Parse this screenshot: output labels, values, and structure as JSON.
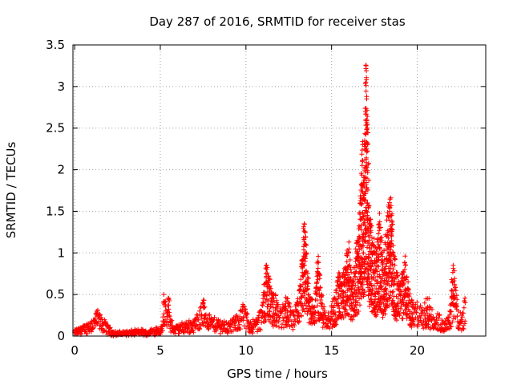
{
  "chart_data": {
    "type": "scatter",
    "title": "Day 287 of 2016, SRMTID for receiver stas",
    "xlabel": "GPS time / hours",
    "ylabel": "SRMTID / TECUs",
    "xlim": [
      -0.1,
      24
    ],
    "ylim": [
      0,
      3.5
    ],
    "x_ticks": [
      0,
      5,
      10,
      15,
      20
    ],
    "x_tick_labels": [
      "0",
      "5",
      "10",
      "15",
      "20"
    ],
    "y_ticks": [
      0,
      0.5,
      1,
      1.5,
      2,
      2.5,
      3,
      3.5
    ],
    "y_tick_labels": [
      "0",
      "0.5",
      "1",
      "1.5",
      "2",
      "2.5",
      "3",
      "3.5"
    ],
    "grid": true,
    "marker": "+",
    "color": "#ff0000",
    "series": [
      {
        "name": "SRMTID",
        "x": [
          0.0,
          0.2,
          0.4,
          0.6,
          0.8,
          1.0,
          1.2,
          1.3,
          1.4,
          1.6,
          1.8,
          2.0,
          2.2,
          2.5,
          3.0,
          3.5,
          4.0,
          4.2,
          4.5,
          4.8,
          5.0,
          5.1,
          5.2,
          5.3,
          5.4,
          5.5,
          5.6,
          5.8,
          6.0,
          6.5,
          7.0,
          7.3,
          7.5,
          7.6,
          7.8,
          8.0,
          8.5,
          9.0,
          9.5,
          9.8,
          10.0,
          10.3,
          10.6,
          10.9,
          11.0,
          11.2,
          11.4,
          11.6,
          11.8,
          12.0,
          12.2,
          12.4,
          12.6,
          12.8,
          13.0,
          13.2,
          13.3,
          13.4,
          13.5,
          13.6,
          13.8,
          14.0,
          14.2,
          14.4,
          14.6,
          14.8,
          15.0,
          15.2,
          15.4,
          15.6,
          15.8,
          16.0,
          16.2,
          16.4,
          16.6,
          16.7,
          16.8,
          16.9,
          17.0,
          17.05,
          17.1,
          17.2,
          17.4,
          17.6,
          17.8,
          18.0,
          18.2,
          18.4,
          18.5,
          18.6,
          18.8,
          19.0,
          19.3,
          19.6,
          20.0,
          20.3,
          20.6,
          21.0,
          21.3,
          21.6,
          21.9,
          22.0,
          22.1,
          22.2,
          22.4,
          22.6,
          22.8
        ],
        "y": [
          0.06,
          0.08,
          0.1,
          0.12,
          0.15,
          0.18,
          0.22,
          0.28,
          0.25,
          0.2,
          0.15,
          0.1,
          0.05,
          0.04,
          0.05,
          0.06,
          0.07,
          0.04,
          0.08,
          0.1,
          0.08,
          0.12,
          0.5,
          0.35,
          0.3,
          0.45,
          0.2,
          0.1,
          0.12,
          0.15,
          0.18,
          0.3,
          0.4,
          0.35,
          0.25,
          0.2,
          0.18,
          0.15,
          0.22,
          0.35,
          0.28,
          0.15,
          0.2,
          0.3,
          0.45,
          0.85,
          0.6,
          0.5,
          0.4,
          0.3,
          0.35,
          0.45,
          0.3,
          0.25,
          0.4,
          0.6,
          0.9,
          1.35,
          1.0,
          0.7,
          0.45,
          0.35,
          0.9,
          0.5,
          0.3,
          0.28,
          0.35,
          0.45,
          0.7,
          0.6,
          0.8,
          1.0,
          0.6,
          0.9,
          1.2,
          1.6,
          2.1,
          1.8,
          3.05,
          2.6,
          2.3,
          1.4,
          1.1,
          0.9,
          1.3,
          0.8,
          1.2,
          1.5,
          1.45,
          1.0,
          0.7,
          0.55,
          0.85,
          0.4,
          0.35,
          0.3,
          0.45,
          0.2,
          0.25,
          0.15,
          0.3,
          0.55,
          0.85,
          0.6,
          0.3,
          0.25,
          0.4
        ]
      }
    ]
  }
}
